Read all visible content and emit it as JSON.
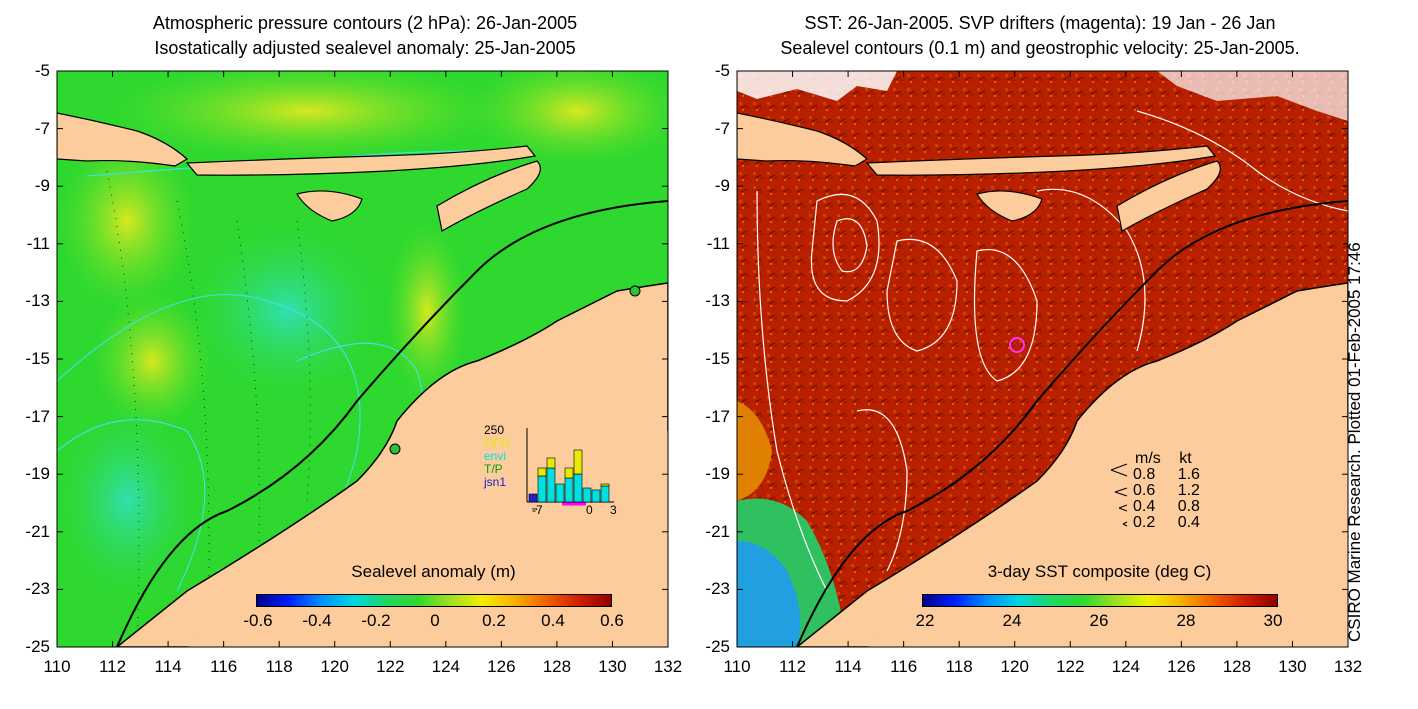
{
  "left": {
    "title_line1": "Atmospheric pressure contours (2 hPa): 26-Jan-2005",
    "title_line2": "Isostatically adjusted sealevel anomaly: 25-Jan-2005",
    "colorbar_title": "Sealevel anomaly (m)",
    "colorbar_ticks": [
      "-0.6",
      "-0.4",
      "-0.2",
      "0",
      "0.2",
      "0.4",
      "0.6"
    ],
    "inset": {
      "ymax_label": "250",
      "missions": [
        {
          "name": "GFO",
          "color": "#e8e800"
        },
        {
          "name": "envi",
          "color": "#00e0e0"
        },
        {
          "name": "T/P",
          "color": "#00c000"
        },
        {
          "name": "jsn1",
          "color": "#2020d0"
        }
      ],
      "x_labels": [
        "-7",
        "0",
        "3"
      ]
    }
  },
  "right": {
    "title_line1": "SST: 26-Jan-2005. SVP drifters (magenta): 19 Jan - 26 Jan",
    "title_line2": "Sealevel contours (0.1 m) and geostrophic velocity: 25-Jan-2005.",
    "colorbar_title": "3-day SST composite (deg C)",
    "colorbar_ticks": [
      "22",
      "24",
      "26",
      "28",
      "30"
    ],
    "velocity_legend": {
      "header_ms": "m/s",
      "header_kt": "kt",
      "rows": [
        {
          "ms": "0.8",
          "kt": "1.6"
        },
        {
          "ms": "0.6",
          "kt": "1.2"
        },
        {
          "ms": "0.4",
          "kt": "0.8"
        },
        {
          "ms": "0.2",
          "kt": "0.4"
        }
      ]
    }
  },
  "axes": {
    "y_labels": [
      "-5",
      "-7",
      "-9",
      "-11",
      "-13",
      "-15",
      "-17",
      "-19",
      "-21",
      "-23",
      "-25"
    ],
    "x_labels": [
      "110",
      "112",
      "114",
      "116",
      "118",
      "120",
      "122",
      "124",
      "126",
      "128",
      "130",
      "132"
    ]
  },
  "credit": "CSIRO Marine Research. Plotted 01-Feb-2005 17:46",
  "colors": {
    "land": "#fccc9c",
    "sla_ocean": "#2ed82e",
    "sst_ocean": "#b82000",
    "contour_cyan": "#40e0e0"
  }
}
